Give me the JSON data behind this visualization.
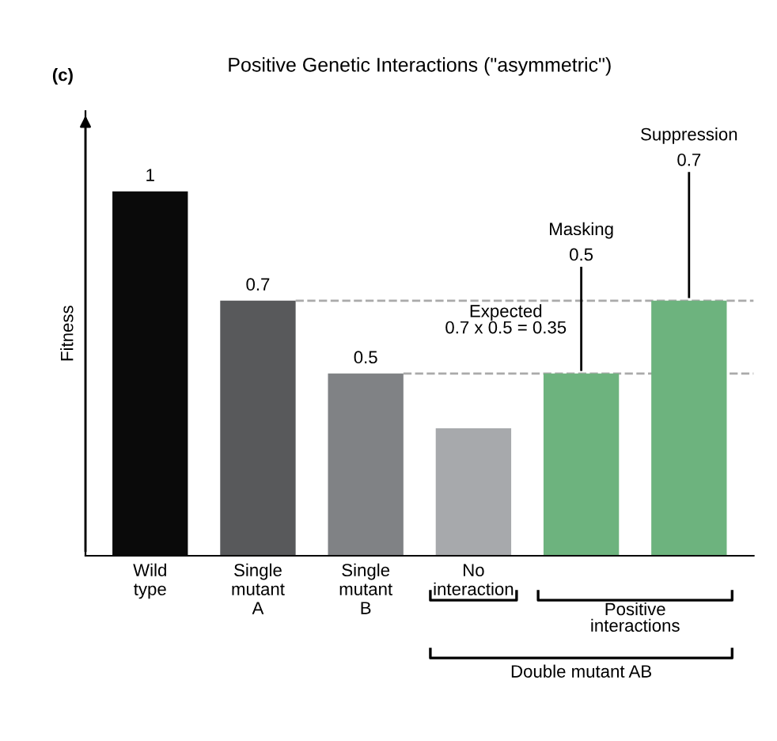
{
  "chart_data": {
    "type": "bar",
    "title": "Positive Genetic Interactions (\"asymmetric\")",
    "ylabel": "Fitness",
    "categories": [
      "Wild\ntype",
      "Single\nmutant\nA",
      "Single\nmutant\nB",
      "No\ninteraction",
      null,
      null
    ],
    "values": [
      1,
      0.7,
      0.5,
      0.35,
      0.5,
      0.7
    ],
    "colors": [
      "#0a0a0a",
      "#58595b",
      "#808285",
      "#a7a9ac",
      "#6db37e",
      "#6db37e"
    ],
    "value_labels": [
      "1",
      "0.7",
      "0.5",
      null,
      "0.5",
      "0.7"
    ],
    "ref_lines": [
      {
        "axis": "y",
        "value": 0.7,
        "line_style": "dashed",
        "color": "#aaaaaa"
      },
      {
        "axis": "y",
        "value": 0.5,
        "line_style": "dashed",
        "color": "#aaaaaa"
      }
    ],
    "annotations": [
      "(c)",
      "Expected\n0.7 x 0.5 = 0.35",
      "Masking",
      "Suppression",
      "Positive\ninteractions",
      "Double mutant AB"
    ],
    "grid": false
  }
}
